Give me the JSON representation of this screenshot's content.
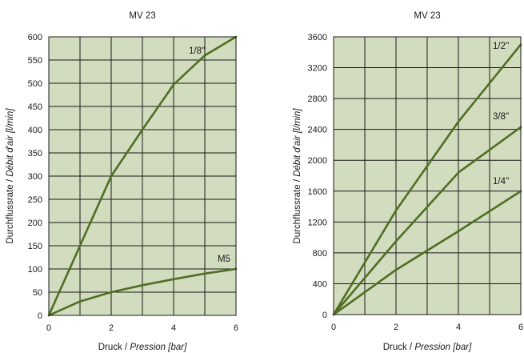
{
  "chart_data": [
    {
      "type": "line",
      "title": "MV 23",
      "xlabel": {
        "main": "Druck / ",
        "italic": "Pression [bar]"
      },
      "ylabel": {
        "main": "Durchflussrate / ",
        "italic": "Débit d'air [l/min]"
      },
      "xlim": [
        0,
        6
      ],
      "ylim": [
        0,
        600
      ],
      "x_ticks": [
        0,
        1,
        2,
        3,
        4,
        5,
        6
      ],
      "x_tick_labels": [
        "0",
        "2",
        "4",
        "6"
      ],
      "x_tick_label_values": [
        0,
        2,
        4,
        6
      ],
      "y_ticks": [
        0,
        50,
        100,
        150,
        200,
        250,
        300,
        350,
        400,
        450,
        500,
        550,
        600
      ],
      "y_tick_labels": [
        "0",
        "50",
        "100",
        "150",
        "200",
        "250",
        "300",
        "350",
        "400",
        "450",
        "500",
        "550",
        "600"
      ],
      "grid": true,
      "background_color": "#d2dcbf",
      "line_color": "#4f6f22",
      "series": [
        {
          "name": "1/8''",
          "x": [
            0,
            1,
            2,
            3,
            4,
            5,
            6
          ],
          "y": [
            0,
            150,
            300,
            400,
            497,
            560,
            600
          ]
        },
        {
          "name": "M5",
          "x": [
            0,
            1,
            2,
            3,
            4,
            5,
            6
          ],
          "y": [
            0,
            30,
            50,
            65,
            78,
            90,
            100
          ]
        }
      ]
    },
    {
      "type": "line",
      "title": "MV 23",
      "xlabel": {
        "main": "Druck / ",
        "italic": "Pression [bar]"
      },
      "ylabel": {
        "main": "Durchflussrate / ",
        "italic": "Débit d'air [l/min]"
      },
      "xlim": [
        0,
        6
      ],
      "ylim": [
        0,
        3600
      ],
      "x_ticks": [
        0,
        1,
        2,
        3,
        4,
        5,
        6
      ],
      "x_tick_labels": [
        "0",
        "2",
        "4",
        "6"
      ],
      "x_tick_label_values": [
        0,
        2,
        4,
        6
      ],
      "y_ticks": [
        0,
        400,
        800,
        1200,
        1600,
        2000,
        2400,
        2800,
        3200,
        3600
      ],
      "y_tick_labels": [
        "0",
        "400",
        "800",
        "1200",
        "1600",
        "2000",
        "2400",
        "2800",
        "3200",
        "3600"
      ],
      "grid": true,
      "background_color": "#d2dcbf",
      "line_color": "#4f6f22",
      "series": [
        {
          "name": "1/2''",
          "x": [
            0,
            2,
            4,
            6
          ],
          "y": [
            0,
            1350,
            2500,
            3500
          ]
        },
        {
          "name": "3/8''",
          "x": [
            0,
            2,
            4,
            6
          ],
          "y": [
            0,
            950,
            1840,
            2430
          ]
        },
        {
          "name": "1/4''",
          "x": [
            0,
            2,
            4,
            6
          ],
          "y": [
            0,
            580,
            1080,
            1600
          ]
        }
      ]
    }
  ]
}
